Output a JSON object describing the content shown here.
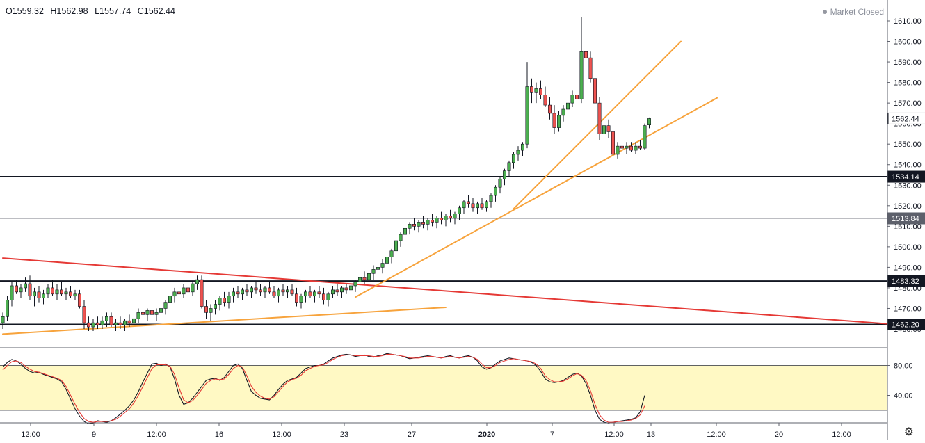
{
  "header": {
    "open": "O1559.32",
    "high": "H1562.98",
    "low": "L1557.74",
    "close": "C1562.44"
  },
  "status": {
    "market": "Market Closed",
    "dot_color": "#9598a1"
  },
  "icons": {
    "settings": "gear-icon"
  },
  "colors": {
    "up": "#4caf50",
    "down": "#ef5350",
    "wick": "#131722",
    "trend_orange": "#f7a33c",
    "trend_red": "#e53935",
    "stoch_k": "#131722",
    "stoch_d": "#e53935",
    "band": "#fff9c4"
  },
  "chart_data": [
    {
      "type": "candlestick",
      "ylim": [
        1450,
        1615
      ],
      "y_ticks": [
        "1610.00",
        "1600.00",
        "1590.00",
        "1580.00",
        "1570.00",
        "1560.00",
        "1550.00",
        "1540.00",
        "1530.00",
        "1520.00",
        "1510.00",
        "1500.00",
        "1490.00",
        "1480.00",
        "1470.00",
        "1460.00"
      ],
      "x_ticks": [
        "12:00",
        "9",
        "12:00",
        "16",
        "12:00",
        "23",
        "27",
        "2020",
        "7",
        "12:00",
        "13",
        "12:00",
        "20",
        "12:00"
      ],
      "price_labels": [
        {
          "value": 1562.44,
          "text": "1562.44",
          "kind": "last"
        },
        {
          "value": 1534.14,
          "text": "1534.14",
          "kind": "line"
        },
        {
          "value": 1513.84,
          "text": "1513.84",
          "kind": "line-gray"
        },
        {
          "value": 1483.32,
          "text": "1483.32",
          "kind": "line"
        },
        {
          "value": 1462.2,
          "text": "1462.20",
          "kind": "line"
        }
      ],
      "horizontal_lines": [
        1534.14,
        1513.84,
        1483.32,
        1462.2
      ],
      "trendlines": [
        {
          "color": "orange",
          "from": [
            0,
            1457.5
          ],
          "to": [
            98,
            1470.5
          ]
        },
        {
          "color": "red",
          "from": [
            0,
            1494.5
          ],
          "to": [
            208,
            1460.5
          ]
        },
        {
          "color": "orange",
          "from": [
            78,
            1475.5
          ],
          "to": [
            158,
            1572.5
          ]
        },
        {
          "color": "orange",
          "from": [
            113,
            1518.5
          ],
          "to": [
            150,
            1600
          ]
        }
      ],
      "candles": [
        [
          1463,
          1468,
          1460,
          1466
        ],
        [
          1466,
          1476,
          1464,
          1474
        ],
        [
          1474,
          1483,
          1471,
          1481
        ],
        [
          1481,
          1484,
          1477,
          1478
        ],
        [
          1478,
          1482,
          1475,
          1480
        ],
        [
          1480,
          1485,
          1478,
          1482
        ],
        [
          1482,
          1486,
          1474,
          1476
        ],
        [
          1476,
          1480,
          1471,
          1478
        ],
        [
          1478,
          1481,
          1473,
          1475
        ],
        [
          1475,
          1479,
          1472,
          1477
        ],
        [
          1477,
          1482,
          1475,
          1480
        ],
        [
          1480,
          1484,
          1476,
          1477
        ],
        [
          1477,
          1482,
          1474,
          1479
        ],
        [
          1479,
          1483,
          1476,
          1477
        ],
        [
          1477,
          1480,
          1474,
          1478
        ],
        [
          1478,
          1481,
          1475,
          1476
        ],
        [
          1476,
          1479,
          1474,
          1477
        ],
        [
          1477,
          1479,
          1470,
          1471
        ],
        [
          1471,
          1474,
          1460,
          1463
        ],
        [
          1463,
          1466,
          1459,
          1461
        ],
        [
          1461,
          1465,
          1459,
          1463
        ],
        [
          1463,
          1466,
          1460,
          1462
        ],
        [
          1462,
          1466,
          1460,
          1464
        ],
        [
          1464,
          1468,
          1461,
          1466
        ],
        [
          1466,
          1468,
          1461,
          1462
        ],
        [
          1462,
          1465,
          1459,
          1463
        ],
        [
          1463,
          1466,
          1460,
          1462
        ],
        [
          1462,
          1465,
          1459,
          1464
        ],
        [
          1464,
          1467,
          1461,
          1463
        ],
        [
          1463,
          1466,
          1461,
          1465
        ],
        [
          1465,
          1470,
          1463,
          1468
        ],
        [
          1468,
          1471,
          1465,
          1467
        ],
        [
          1467,
          1470,
          1464,
          1469
        ],
        [
          1469,
          1472,
          1466,
          1467
        ],
        [
          1467,
          1470,
          1464,
          1468
        ],
        [
          1468,
          1472,
          1465,
          1470
        ],
        [
          1470,
          1474,
          1467,
          1473
        ],
        [
          1473,
          1477,
          1470,
          1476
        ],
        [
          1476,
          1480,
          1473,
          1478
        ],
        [
          1478,
          1481,
          1475,
          1477
        ],
        [
          1477,
          1482,
          1475,
          1480
        ],
        [
          1480,
          1483,
          1477,
          1478
        ],
        [
          1478,
          1483,
          1476,
          1482
        ],
        [
          1482,
          1486,
          1479,
          1484
        ],
        [
          1484,
          1486,
          1470,
          1471
        ],
        [
          1471,
          1474,
          1465,
          1468
        ],
        [
          1468,
          1472,
          1464,
          1470
        ],
        [
          1470,
          1474,
          1467,
          1472
        ],
        [
          1472,
          1476,
          1469,
          1475
        ],
        [
          1475,
          1478,
          1471,
          1473
        ],
        [
          1473,
          1478,
          1470,
          1476
        ],
        [
          1476,
          1480,
          1473,
          1478
        ],
        [
          1478,
          1481,
          1475,
          1477
        ],
        [
          1477,
          1480,
          1474,
          1479
        ],
        [
          1479,
          1482,
          1476,
          1478
        ],
        [
          1478,
          1481,
          1475,
          1480
        ],
        [
          1480,
          1483,
          1477,
          1479
        ],
        [
          1479,
          1482,
          1476,
          1478
        ],
        [
          1478,
          1481,
          1475,
          1480
        ],
        [
          1480,
          1483,
          1477,
          1478
        ],
        [
          1478,
          1481,
          1475,
          1476
        ],
        [
          1476,
          1480,
          1473,
          1479
        ],
        [
          1479,
          1482,
          1476,
          1478
        ],
        [
          1478,
          1481,
          1475,
          1479
        ],
        [
          1479,
          1482,
          1476,
          1477
        ],
        [
          1477,
          1480,
          1471,
          1473
        ],
        [
          1473,
          1477,
          1470,
          1476
        ],
        [
          1476,
          1479,
          1473,
          1478
        ],
        [
          1478,
          1481,
          1475,
          1476
        ],
        [
          1476,
          1479,
          1473,
          1478
        ],
        [
          1478,
          1481,
          1475,
          1477
        ],
        [
          1477,
          1480,
          1472,
          1474
        ],
        [
          1474,
          1478,
          1471,
          1477
        ],
        [
          1477,
          1481,
          1475,
          1479
        ],
        [
          1479,
          1482,
          1476,
          1478
        ],
        [
          1478,
          1481,
          1475,
          1480
        ],
        [
          1480,
          1482,
          1477,
          1479
        ],
        [
          1479,
          1482,
          1476,
          1481
        ],
        [
          1481,
          1484,
          1478,
          1483
        ],
        [
          1483,
          1486,
          1480,
          1485
        ],
        [
          1485,
          1488,
          1482,
          1484
        ],
        [
          1484,
          1488,
          1481,
          1487
        ],
        [
          1487,
          1491,
          1484,
          1489
        ],
        [
          1489,
          1493,
          1486,
          1490
        ],
        [
          1490,
          1494,
          1487,
          1492
        ],
        [
          1492,
          1496,
          1489,
          1495
        ],
        [
          1495,
          1499,
          1492,
          1498
        ],
        [
          1498,
          1504,
          1495,
          1503
        ],
        [
          1503,
          1507,
          1500,
          1506
        ],
        [
          1506,
          1510,
          1503,
          1509
        ],
        [
          1509,
          1512,
          1506,
          1511
        ],
        [
          1511,
          1514,
          1508,
          1510
        ],
        [
          1510,
          1513,
          1507,
          1512
        ],
        [
          1512,
          1515,
          1509,
          1511
        ],
        [
          1511,
          1514,
          1508,
          1513
        ],
        [
          1513,
          1516,
          1510,
          1512
        ],
        [
          1512,
          1515,
          1509,
          1514
        ],
        [
          1514,
          1517,
          1511,
          1513
        ],
        [
          1513,
          1516,
          1510,
          1515
        ],
        [
          1515,
          1518,
          1512,
          1514
        ],
        [
          1514,
          1517,
          1511,
          1516
        ],
        [
          1516,
          1520,
          1513,
          1519
        ],
        [
          1519,
          1523,
          1516,
          1522
        ],
        [
          1522,
          1525,
          1519,
          1521
        ],
        [
          1521,
          1524,
          1517,
          1519
        ],
        [
          1519,
          1522,
          1516,
          1521
        ],
        [
          1521,
          1524,
          1518,
          1519
        ],
        [
          1519,
          1523,
          1517,
          1522
        ],
        [
          1522,
          1526,
          1519,
          1525
        ],
        [
          1525,
          1530,
          1522,
          1529
        ],
        [
          1529,
          1534,
          1526,
          1533
        ],
        [
          1533,
          1538,
          1530,
          1537
        ],
        [
          1537,
          1542,
          1534,
          1541
        ],
        [
          1541,
          1546,
          1538,
          1545
        ],
        [
          1545,
          1549,
          1542,
          1547
        ],
        [
          1547,
          1551,
          1544,
          1550
        ],
        [
          1550,
          1590,
          1548,
          1578
        ],
        [
          1578,
          1582,
          1570,
          1575
        ],
        [
          1575,
          1580,
          1570,
          1577
        ],
        [
          1577,
          1581,
          1572,
          1574
        ],
        [
          1574,
          1578,
          1568,
          1569
        ],
        [
          1569,
          1573,
          1562,
          1565
        ],
        [
          1565,
          1569,
          1555,
          1558
        ],
        [
          1558,
          1566,
          1556,
          1564
        ],
        [
          1564,
          1569,
          1561,
          1567
        ],
        [
          1567,
          1572,
          1564,
          1570
        ],
        [
          1570,
          1576,
          1568,
          1574
        ],
        [
          1574,
          1578,
          1570,
          1572
        ],
        [
          1572,
          1612,
          1570,
          1595
        ],
        [
          1595,
          1598,
          1585,
          1592
        ],
        [
          1592,
          1595,
          1580,
          1582
        ],
        [
          1582,
          1585,
          1568,
          1570
        ],
        [
          1570,
          1573,
          1552,
          1555
        ],
        [
          1555,
          1561,
          1552,
          1559
        ],
        [
          1559,
          1562,
          1553,
          1556
        ],
        [
          1556,
          1558,
          1540,
          1545
        ],
        [
          1545,
          1551,
          1543,
          1549
        ],
        [
          1549,
          1552,
          1545,
          1548
        ],
        [
          1548,
          1551,
          1545,
          1549
        ],
        [
          1549,
          1551,
          1546,
          1547
        ],
        [
          1547,
          1551,
          1545,
          1549
        ],
        [
          1549,
          1552,
          1547,
          1548
        ],
        [
          1548,
          1560,
          1547,
          1559
        ],
        [
          1559.32,
          1562.98,
          1557.74,
          1562.44
        ]
      ]
    },
    {
      "type": "line",
      "name": "stochastic",
      "ylim": [
        0,
        100
      ],
      "y_ticks": [
        "80.00",
        "40.00"
      ],
      "band": [
        20,
        80
      ],
      "series": [
        {
          "values": [
            78,
            84,
            88,
            86,
            82,
            76,
            72,
            70,
            71,
            68,
            66,
            64,
            62,
            58,
            48,
            35,
            22,
            12,
            5,
            2,
            3,
            6,
            5,
            4,
            6,
            10,
            15,
            20,
            26,
            34,
            45,
            58,
            70,
            82,
            83,
            80,
            82,
            78,
            62,
            40,
            28,
            30,
            36,
            44,
            52,
            60,
            62,
            63,
            60,
            64,
            72,
            80,
            82,
            76,
            60,
            45,
            40,
            36,
            35,
            34,
            40,
            48,
            55,
            60,
            62,
            64,
            70,
            76,
            78,
            80,
            80,
            82,
            86,
            90,
            92,
            94,
            95,
            94,
            92,
            93,
            94,
            92,
            91,
            93,
            94,
            96,
            95,
            94,
            93,
            91,
            89,
            90,
            91,
            92,
            93,
            92,
            91,
            90,
            92,
            93,
            91,
            90,
            92,
            93,
            91,
            86,
            78,
            75,
            77,
            82,
            86,
            88,
            90,
            89,
            88,
            87,
            86,
            84,
            80,
            72,
            62,
            58,
            57,
            58,
            60,
            64,
            68,
            70,
            66,
            56,
            40,
            20,
            8,
            4,
            3,
            4,
            5,
            6,
            7,
            8,
            10,
            18,
            40
          ]
        },
        {
          "values": [
            74,
            80,
            85,
            86,
            84,
            79,
            75,
            72,
            71,
            69,
            67,
            65,
            63,
            60,
            52,
            40,
            28,
            17,
            9,
            5,
            4,
            5,
            5,
            5,
            6,
            8,
            12,
            17,
            22,
            30,
            40,
            52,
            64,
            76,
            81,
            81,
            81,
            79,
            68,
            50,
            34,
            30,
            33,
            40,
            48,
            56,
            60,
            62,
            61,
            62,
            68,
            76,
            80,
            78,
            66,
            52,
            44,
            39,
            36,
            35,
            38,
            45,
            52,
            58,
            61,
            63,
            67,
            73,
            76,
            79,
            80,
            81,
            84,
            88,
            91,
            93,
            94,
            94,
            93,
            93,
            93,
            93,
            92,
            92,
            93,
            95,
            95,
            94,
            93,
            92,
            90,
            90,
            90,
            91,
            92,
            92,
            91,
            90,
            91,
            92,
            91,
            90,
            91,
            92,
            91,
            88,
            82,
            77,
            77,
            80,
            84,
            86,
            88,
            89,
            88,
            87,
            86,
            85,
            82,
            76,
            66,
            61,
            58,
            58,
            59,
            62,
            66,
            69,
            67,
            60,
            46,
            28,
            14,
            7,
            4,
            4,
            5,
            5,
            6,
            7,
            9,
            14,
            26
          ]
        }
      ]
    }
  ]
}
